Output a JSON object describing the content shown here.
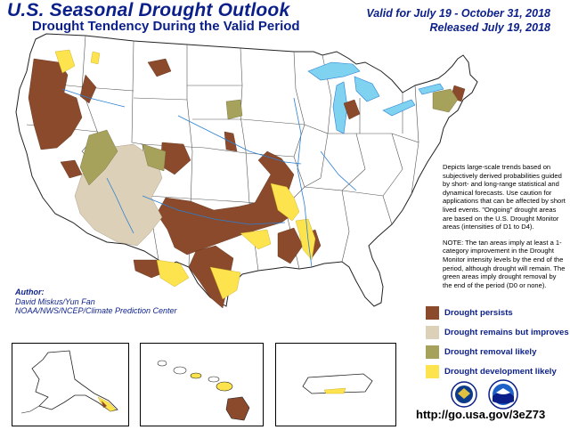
{
  "header": {
    "title": "U.S. Seasonal Drought Outlook",
    "subtitle": "Drought Tendency During the Valid Period",
    "valid_line": "Valid for July 19 - October 31, 2018",
    "released_line": "Released July 19, 2018"
  },
  "description": {
    "paragraph1": "Depicts large-scale trends based on subjectively derived probabilities guided by short- and long-range statistical and dynamical forecasts. Use caution for applications that can be affected by short lived events. \"Ongoing\" drought areas are based on the U.S. Drought Monitor areas (intensities of D1 to D4).",
    "paragraph2": "NOTE: The tan areas imply at least a 1-category improvement in the Drought Monitor intensity levels by the end of the period, although drought will remain. The green areas imply drought removal by the end of the period (D0 or none)."
  },
  "author": {
    "label": "Author:",
    "names": "David Miskus/Yun Fan",
    "org": "NOAA/NWS/NCEP/Climate Prediction Center"
  },
  "legend": [
    {
      "label": "Drought persists",
      "color": "#8b4a2b"
    },
    {
      "label": "Drought remains but improves",
      "color": "#ddd0b8"
    },
    {
      "label": "Drought removal likely",
      "color": "#a6a25c"
    },
    {
      "label": "Drought development likely",
      "color": "#fde34e"
    }
  ],
  "colors": {
    "land": "#ffffff",
    "water": "#7fd3f0",
    "rivers": "#2a7fd4",
    "title": "#0b1f8a"
  },
  "footer": {
    "url": "http://go.usa.gov/3eZ73"
  }
}
